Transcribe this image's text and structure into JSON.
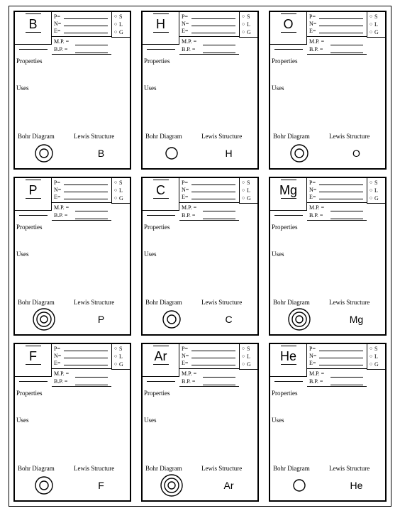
{
  "labels": {
    "P": "P=",
    "N": "N=",
    "E": "E=",
    "MP": "M.P. =",
    "BP": "B.P. =",
    "S": "S",
    "L": "L",
    "G": "G",
    "circ": "○",
    "properties": "Properties",
    "uses": "Uses",
    "bohr": "Bohr Diagram",
    "lewis": "Lewis Structure"
  },
  "style": {
    "stroke": "#000000",
    "stroke_width": 1.2,
    "font_family_symbol": "Arial",
    "font_family_body": "Times New Roman"
  },
  "cards": [
    {
      "symbol": "B",
      "shells": 2
    },
    {
      "symbol": "H",
      "shells": 1
    },
    {
      "symbol": "O",
      "shells": 2
    },
    {
      "symbol": "P",
      "shells": 3
    },
    {
      "symbol": "C",
      "shells": 2
    },
    {
      "symbol": "Mg",
      "shells": 3
    },
    {
      "symbol": "F",
      "shells": 2
    },
    {
      "symbol": "Ar",
      "shells": 3
    },
    {
      "symbol": "He",
      "shells": 1
    }
  ]
}
